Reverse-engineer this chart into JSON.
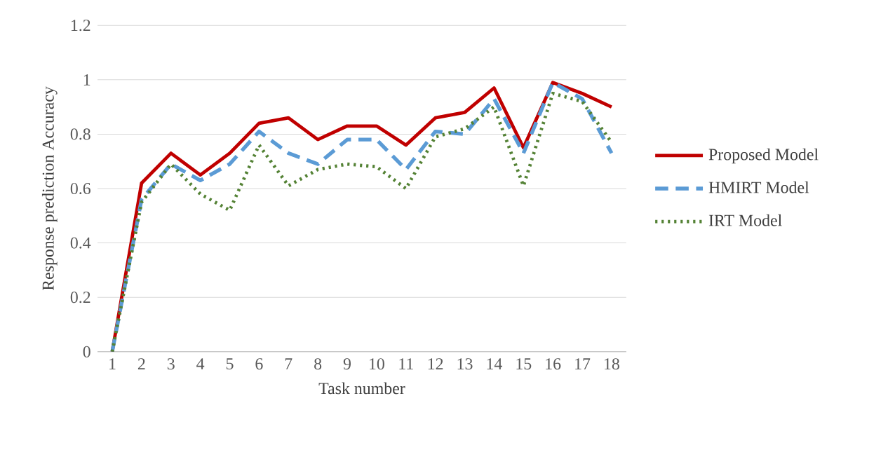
{
  "chart_data": {
    "type": "line",
    "xlabel": "Task number",
    "ylabel": "Response prediction Accuracy",
    "categories": [
      "1",
      "2",
      "3",
      "4",
      "5",
      "6",
      "7",
      "8",
      "9",
      "10",
      "11",
      "12",
      "13",
      "14",
      "15",
      "16",
      "17",
      "18"
    ],
    "series": [
      {
        "name": "Proposed Model",
        "color": "#c00000",
        "line_style": "solid",
        "values": [
          0,
          0.62,
          0.73,
          0.65,
          0.73,
          0.84,
          0.86,
          0.78,
          0.83,
          0.83,
          0.76,
          0.86,
          0.88,
          0.97,
          0.75,
          0.99,
          0.95,
          0.9
        ]
      },
      {
        "name": "HMIRT Model",
        "color": "#5b9bd5",
        "line_style": "dashed",
        "values": [
          0,
          0.56,
          0.69,
          0.63,
          0.69,
          0.81,
          0.73,
          0.69,
          0.78,
          0.78,
          0.67,
          0.81,
          0.8,
          0.93,
          0.73,
          0.99,
          0.93,
          0.73
        ]
      },
      {
        "name": "IRT Model",
        "color": "#548235",
        "line_style": "dotted",
        "values": [
          0,
          0.55,
          0.69,
          0.58,
          0.52,
          0.76,
          0.61,
          0.67,
          0.69,
          0.68,
          0.6,
          0.79,
          0.82,
          0.9,
          0.61,
          0.95,
          0.92,
          0.77
        ]
      }
    ],
    "ylim": [
      0,
      1.2
    ],
    "yticks": [
      0,
      0.2,
      0.4,
      0.6,
      0.8,
      1,
      1.2
    ],
    "grid": "y",
    "legend": "right",
    "marker": "none"
  }
}
